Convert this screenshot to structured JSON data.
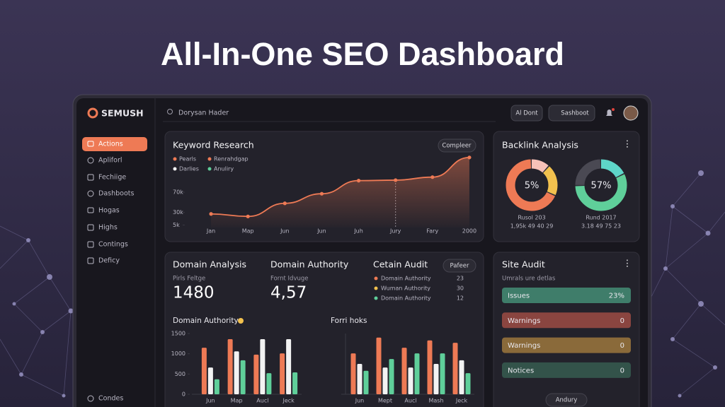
{
  "title": "All-In-One SEO Dashboard",
  "sidebar": {
    "logo": "SEMUSH",
    "items": [
      "Actions",
      "Apliforl",
      "Fechiige",
      "Dashboots",
      "Hogas",
      "Highs",
      "Contings",
      "Deficy"
    ],
    "footer": "Condes"
  },
  "topbar": {
    "search": "Dorysan Hader",
    "buttons": [
      "Al Dont",
      "Sashboot"
    ]
  },
  "keyword_research": {
    "title": "Keyword Research",
    "button": "Compleer",
    "legend": [
      {
        "label": "Pearls",
        "color": "#ee7a55"
      },
      {
        "label": "Renrahdgap",
        "color": "#ee7a55"
      },
      {
        "label": "Darlies",
        "color": "#f2f2f2"
      },
      {
        "label": "Anuliry",
        "color": "#5fcf9a"
      }
    ]
  },
  "backlink_analysis": {
    "title": "Backlink Analysis"
  },
  "domain_analysis": {
    "title": "Domain Analysis",
    "subtitle": "Pirls Feltge",
    "value": 1480
  },
  "domain_authority": {
    "title": "Domain Authority",
    "subtitle": "Fornt Idvuge",
    "value": "4,57"
  },
  "certain_audit": {
    "title": "Cetain Audit",
    "button": "Pafeer",
    "rows": [
      {
        "label": "Domain Authority",
        "value": 23,
        "color": "#ee7a55"
      },
      {
        "label": "Wuman Authority",
        "value": 30,
        "color": "#f2c14e"
      },
      {
        "label": "Domain Authority",
        "value": 12,
        "color": "#5fcf9a"
      }
    ]
  },
  "site_audit": {
    "title": "Site Audit",
    "subtitle": "Umrals ure detlas",
    "button": "Andury",
    "rows": [
      {
        "label": "Issues",
        "value": "23%",
        "color": "#3f7d6a"
      },
      {
        "label": "Warnings",
        "value": "0",
        "color": "#8a4540"
      },
      {
        "label": "Warnings",
        "value": "0",
        "color": "#8a6a3a"
      },
      {
        "label": "Notices",
        "value": "0",
        "color": "#33534a"
      }
    ]
  },
  "chart_data": [
    {
      "type": "line",
      "categories": [
        "Jan",
        "Map",
        "Jun",
        "Jun",
        "Juh",
        "Jury",
        "Fary",
        "2000"
      ],
      "series": [
        {
          "color": "#ee7a55",
          "values": [
            27000,
            22000,
            48000,
            67000,
            93000,
            94000,
            100000,
            139000
          ]
        }
      ],
      "ylim": [
        0,
        150000
      ],
      "yticks": [
        {
          "value": 5000,
          "label": "5k"
        },
        {
          "value": 30000,
          "label": "30k"
        },
        {
          "value": 70000,
          "label": "70k"
        }
      ]
    },
    {
      "type": "donut",
      "center_label": "5%",
      "caption": "Rusol 203",
      "stats": "1,95k 49 40 29",
      "values": [
        12,
        20,
        68
      ],
      "colors": [
        "#f6c1b8",
        "#f2c14e",
        "#ee7a55"
      ]
    },
    {
      "type": "donut",
      "center_label": "57%",
      "caption": "Rund 2017",
      "stats": "3.18 49 75 23",
      "values": [
        18,
        57,
        25
      ],
      "colors": [
        "#5ed6c8",
        "#5fcf9a",
        "#4a4953"
      ]
    },
    {
      "type": "bar",
      "title": "Domain Authority",
      "categories": [
        "Jun",
        "Map",
        "Aucl",
        "Jeck"
      ],
      "series": [
        {
          "color": "#ee7a55",
          "values": [
            1150,
            1360,
            980,
            1010
          ]
        },
        {
          "color": "#f2f2f2",
          "values": [
            660,
            1060,
            1360,
            1360
          ]
        },
        {
          "color": "#5fcf9a",
          "values": [
            370,
            840,
            520,
            540
          ]
        }
      ],
      "ylim": [
        0,
        1500
      ],
      "yticks": [
        0,
        500,
        1000,
        1500
      ]
    },
    {
      "type": "bar",
      "title": "Forri hoks",
      "categories": [
        "Jun",
        "Mept",
        "Aucl",
        "Mash",
        "Jeck"
      ],
      "series": [
        {
          "color": "#ee7a55",
          "values": [
            1010,
            1400,
            1150,
            1330,
            1270
          ]
        },
        {
          "color": "#f2f2f2",
          "values": [
            750,
            660,
            660,
            750,
            840
          ]
        },
        {
          "color": "#5fcf9a",
          "values": [
            580,
            870,
            1010,
            1010,
            520
          ]
        }
      ],
      "ylim": [
        0,
        1500
      ]
    }
  ]
}
